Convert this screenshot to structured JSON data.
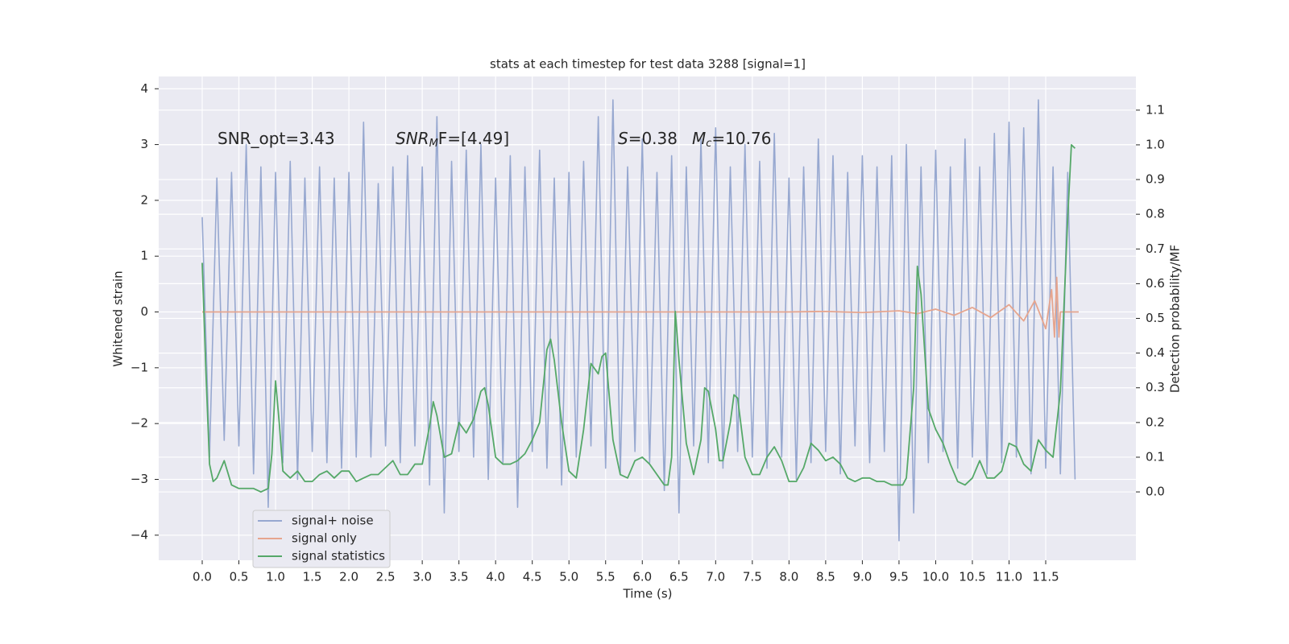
{
  "chart_data": {
    "type": "line",
    "title": "stats at each timestep for test data 3288 [signal=1]",
    "xlabel": "Time (s)",
    "ylabel": "Whitened strain",
    "y2label": "Detection probability/MF",
    "xlim": [
      -0.593,
      12.73
    ],
    "ylim": [
      -4.45,
      4.22
    ],
    "y2lim": [
      -0.197,
      1.197
    ],
    "xticks": [
      {
        "value": 0,
        "label": "0.0"
      },
      0.5,
      {
        "value": 1,
        "label": "1.0"
      },
      1.5,
      {
        "value": 2,
        "label": "2.0"
      },
      2.5,
      {
        "value": 3,
        "label": "3.0"
      },
      3.5,
      {
        "value": 4,
        "label": "4.0"
      },
      4.5,
      {
        "value": 5,
        "label": "5.0"
      },
      5.5,
      {
        "value": 6,
        "label": "6.0"
      },
      6.5,
      {
        "value": 7,
        "label": "7.0"
      },
      7.5,
      {
        "value": 8,
        "label": "8.0"
      },
      8.5,
      {
        "value": 9,
        "label": "9.0"
      },
      9.5,
      {
        "value": 10,
        "label": "10.0"
      },
      10.5,
      {
        "value": 11,
        "label": "11.0"
      },
      11.5
    ],
    "yticks": [
      {
        "value": -4,
        "label": "−4"
      },
      {
        "value": -3,
        "label": "−3"
      },
      {
        "value": -2,
        "label": "−2"
      },
      {
        "value": -1,
        "label": "−1"
      },
      0,
      1,
      2,
      3,
      4
    ],
    "y2ticks": [
      {
        "value": 0,
        "label": "0.0"
      },
      0.1,
      0.2,
      0.3,
      0.4,
      0.5,
      0.6,
      0.7,
      0.8,
      0.9,
      {
        "value": 1,
        "label": "1.0"
      },
      1.1
    ],
    "grid": true,
    "legend": "lower left",
    "annotations": [
      {
        "text": "SNR_opt=3.43",
        "italic": false
      },
      {
        "text": "SNR",
        "sub": "M",
        "rest": "F=[4.49]",
        "italic": true
      },
      {
        "text": "S",
        "rest": "=0.38",
        "italic": true
      },
      {
        "text": "M",
        "sub": "c",
        "rest": "=10.76",
        "italic": true
      }
    ],
    "series": [
      {
        "name": "signal+ noise",
        "color": "#97a8d0",
        "x": [
          0,
          0.1,
          0.2,
          0.3,
          0.4,
          0.5,
          0.6,
          0.7,
          0.8,
          0.9,
          1,
          1.1,
          1.2,
          1.3,
          1.4,
          1.5,
          1.6,
          1.7,
          1.8,
          1.9,
          2,
          2.1,
          2.2,
          2.3,
          2.4,
          2.5,
          2.6,
          2.7,
          2.8,
          2.9,
          3,
          3.1,
          3.2,
          3.3,
          3.4,
          3.5,
          3.6,
          3.7,
          3.8,
          3.9,
          4,
          4.1,
          4.2,
          4.3,
          4.4,
          4.5,
          4.6,
          4.7,
          4.8,
          4.9,
          5,
          5.1,
          5.2,
          5.3,
          5.4,
          5.5,
          5.6,
          5.7,
          5.8,
          5.9,
          6,
          6.1,
          6.2,
          6.3,
          6.4,
          6.5,
          6.6,
          6.7,
          6.8,
          6.9,
          7,
          7.1,
          7.2,
          7.3,
          7.4,
          7.5,
          7.6,
          7.7,
          7.8,
          7.9,
          8,
          8.1,
          8.2,
          8.3,
          8.4,
          8.5,
          8.6,
          8.7,
          8.8,
          8.9,
          9,
          9.1,
          9.2,
          9.3,
          9.4,
          9.5,
          9.6,
          9.7,
          9.8,
          9.9,
          10,
          10.1,
          10.2,
          10.3,
          10.4,
          10.5,
          10.6,
          10.7,
          10.8,
          10.9,
          11,
          11.1,
          11.2,
          11.3,
          11.4,
          11.5,
          11.6,
          11.7,
          11.8,
          11.9
        ],
        "values": [
          1.7,
          -2.6,
          2.4,
          -2.3,
          2.5,
          -2.4,
          3.0,
          -2.9,
          2.6,
          -3.5,
          2.5,
          -2.7,
          2.7,
          -3.0,
          2.4,
          -2.5,
          2.6,
          -2.7,
          2.4,
          -2.8,
          2.5,
          -2.6,
          3.4,
          -2.6,
          2.3,
          -2.4,
          2.6,
          -2.7,
          2.8,
          -2.4,
          2.6,
          -3.1,
          3.5,
          -3.6,
          2.7,
          -2.5,
          2.9,
          -2.6,
          3.0,
          -3.0,
          2.4,
          -2.7,
          2.8,
          -3.5,
          2.6,
          -2.5,
          2.9,
          -2.8,
          2.4,
          -3.1,
          2.5,
          -2.6,
          2.7,
          -2.4,
          3.5,
          -2.8,
          3.8,
          -2.9,
          2.6,
          -2.5,
          3.1,
          -2.7,
          2.5,
          -3.2,
          2.8,
          -3.6,
          2.6,
          -2.4,
          3.1,
          -2.7,
          3.3,
          -2.8,
          2.6,
          -2.5,
          3.0,
          -2.6,
          2.7,
          -2.8,
          3.2,
          -2.6,
          2.4,
          -3.0,
          2.6,
          -2.7,
          3.1,
          -2.5,
          2.8,
          -2.9,
          2.5,
          -2.4,
          2.8,
          -2.7,
          2.6,
          -2.5,
          2.8,
          -4.1,
          3.0,
          -3.6,
          2.6,
          -2.7,
          2.9,
          -2.5,
          2.6,
          -2.8,
          3.1,
          -2.6,
          2.6,
          -2.9,
          3.2,
          -2.7,
          3.4,
          -2.6,
          3.3,
          -2.9,
          3.8,
          -2.8,
          2.6,
          -2.9,
          2.5,
          -3.0
        ]
      },
      {
        "name": "signal only",
        "color": "#e6a58e",
        "x": [
          0,
          8,
          8.5,
          9,
          9.5,
          9.75,
          10,
          10.25,
          10.5,
          10.75,
          11,
          11.2,
          11.35,
          11.5,
          11.58,
          11.62,
          11.65,
          11.68,
          11.7,
          11.95
        ],
        "values": [
          0,
          0,
          0.01,
          -0.01,
          0.02,
          -0.03,
          0.05,
          -0.06,
          0.08,
          -0.1,
          0.13,
          -0.16,
          0.2,
          -0.3,
          0.4,
          -0.45,
          0.62,
          -0.45,
          0,
          0
        ]
      },
      {
        "name": "signal statistics",
        "color": "#55a868",
        "axis": "y2",
        "x": [
          0,
          0.05,
          0.1,
          0.15,
          0.2,
          0.3,
          0.4,
          0.5,
          0.6,
          0.7,
          0.8,
          0.9,
          0.95,
          1,
          1.05,
          1.1,
          1.2,
          1.3,
          1.4,
          1.5,
          1.6,
          1.7,
          1.8,
          1.9,
          2,
          2.1,
          2.2,
          2.3,
          2.4,
          2.5,
          2.6,
          2.7,
          2.8,
          2.9,
          3,
          3.1,
          3.15,
          3.2,
          3.3,
          3.4,
          3.5,
          3.6,
          3.7,
          3.8,
          3.85,
          3.9,
          4,
          4.1,
          4.2,
          4.3,
          4.4,
          4.5,
          4.6,
          4.7,
          4.75,
          4.8,
          4.9,
          5,
          5.1,
          5.2,
          5.3,
          5.4,
          5.45,
          5.5,
          5.6,
          5.7,
          5.8,
          5.9,
          6,
          6.1,
          6.2,
          6.3,
          6.35,
          6.4,
          6.45,
          6.5,
          6.6,
          6.7,
          6.8,
          6.85,
          6.9,
          7,
          7.05,
          7.1,
          7.2,
          7.25,
          7.3,
          7.4,
          7.5,
          7.6,
          7.7,
          7.8,
          7.9,
          8,
          8.1,
          8.2,
          8.3,
          8.4,
          8.5,
          8.6,
          8.7,
          8.8,
          8.9,
          9,
          9.1,
          9.2,
          9.3,
          9.4,
          9.5,
          9.55,
          9.6,
          9.7,
          9.75,
          9.8,
          9.9,
          10,
          10.1,
          10.2,
          10.3,
          10.4,
          10.5,
          10.6,
          10.7,
          10.8,
          10.9,
          11,
          11.1,
          11.2,
          11.3,
          11.4,
          11.5,
          11.6,
          11.7,
          11.8,
          11.85,
          11.9
        ],
        "values": [
          0.66,
          0.35,
          0.08,
          0.03,
          0.04,
          0.09,
          0.02,
          0.01,
          0.01,
          0.01,
          0,
          0.01,
          0.11,
          0.32,
          0.2,
          0.06,
          0.04,
          0.06,
          0.03,
          0.03,
          0.05,
          0.06,
          0.04,
          0.06,
          0.06,
          0.03,
          0.04,
          0.05,
          0.05,
          0.07,
          0.09,
          0.05,
          0.05,
          0.08,
          0.08,
          0.19,
          0.26,
          0.22,
          0.1,
          0.11,
          0.2,
          0.17,
          0.21,
          0.29,
          0.3,
          0.25,
          0.1,
          0.08,
          0.08,
          0.09,
          0.11,
          0.15,
          0.2,
          0.41,
          0.44,
          0.38,
          0.2,
          0.06,
          0.04,
          0.18,
          0.37,
          0.34,
          0.39,
          0.4,
          0.15,
          0.05,
          0.04,
          0.09,
          0.1,
          0.08,
          0.05,
          0.02,
          0.02,
          0.1,
          0.52,
          0.38,
          0.14,
          0.05,
          0.15,
          0.3,
          0.29,
          0.18,
          0.09,
          0.09,
          0.2,
          0.28,
          0.27,
          0.1,
          0.05,
          0.05,
          0.1,
          0.13,
          0.09,
          0.03,
          0.03,
          0.07,
          0.14,
          0.12,
          0.09,
          0.1,
          0.08,
          0.04,
          0.03,
          0.04,
          0.04,
          0.03,
          0.03,
          0.02,
          0.02,
          0.02,
          0.04,
          0.3,
          0.65,
          0.57,
          0.24,
          0.18,
          0.14,
          0.08,
          0.03,
          0.02,
          0.04,
          0.09,
          0.04,
          0.04,
          0.06,
          0.14,
          0.13,
          0.08,
          0.06,
          0.15,
          0.12,
          0.1,
          0.29,
          0.79,
          1.0,
          0.99
        ]
      }
    ]
  }
}
